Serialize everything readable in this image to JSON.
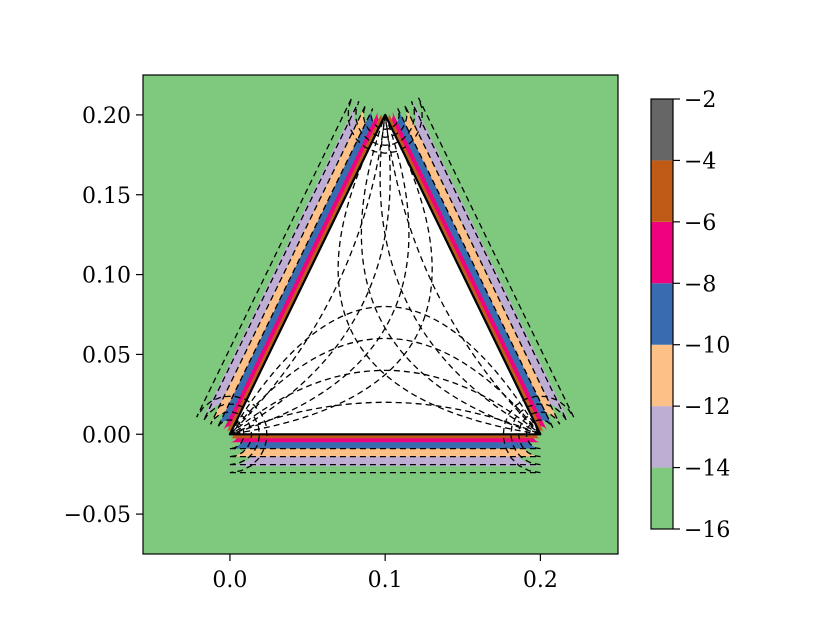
{
  "chart_data": {
    "type": "heatmap",
    "title": "",
    "xlabel": "",
    "ylabel": "",
    "xlim": [
      -0.056,
      0.25
    ],
    "ylim": [
      -0.075,
      0.225
    ],
    "x_ticks": [
      0.0,
      0.1,
      0.2
    ],
    "x_tick_labels": [
      "0.0",
      "0.1",
      "0.2"
    ],
    "y_ticks": [
      -0.05,
      0.0,
      0.05,
      0.1,
      0.15,
      0.2
    ],
    "y_tick_labels": [
      "−0.05",
      "0.00",
      "0.05",
      "0.10",
      "0.15",
      "0.20"
    ],
    "triangle_vertices": [
      [
        0.0,
        0.0
      ],
      [
        0.2,
        0.0
      ],
      [
        0.1,
        0.2
      ]
    ],
    "levels": [
      -16,
      -14,
      -12,
      -10,
      -8,
      -6,
      -4,
      -2
    ],
    "level_colors": [
      "#7fc97f",
      "#beaed4",
      "#fdc086",
      "#386cb0",
      "#f0027f",
      "#bf5b17",
      "#666666"
    ],
    "band_offsets": [
      0.02,
      0.014,
      0.009,
      0.005,
      0.0025,
      0.0008
    ],
    "contour_offsets": [
      0.024,
      0.019,
      0.014,
      0.009
    ],
    "colorbar": {
      "ticks": [
        -2,
        -4,
        -6,
        -8,
        -10,
        -12,
        -14,
        -16
      ],
      "tick_labels": [
        "−2",
        "−4",
        "−6",
        "−8",
        "−10",
        "−12",
        "−14",
        "−16"
      ],
      "range": [
        -16,
        -2
      ]
    },
    "grid": false,
    "legend": "colorbar-right"
  }
}
